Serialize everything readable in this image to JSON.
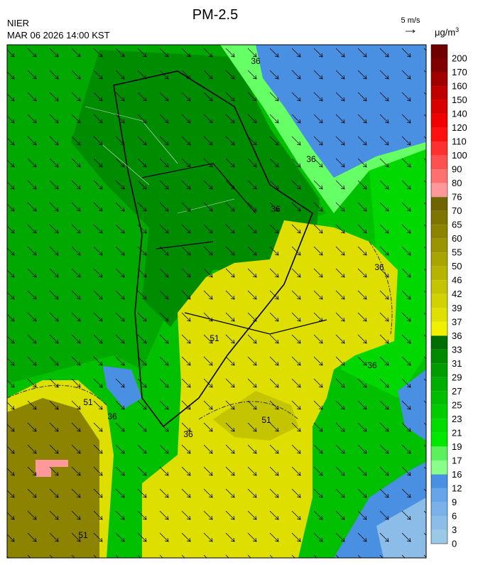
{
  "header": {
    "agency": "NIER",
    "title": "PM-2.5",
    "timestamp": "MAR 06 2026 14:00 KST"
  },
  "wind_legend": {
    "label": "5 m/s"
  },
  "colorbar": {
    "unit": "μg/m",
    "unit_sup": "3",
    "levels": [
      0,
      3,
      6,
      9,
      12,
      16,
      17,
      19,
      21,
      23,
      25,
      27,
      29,
      31,
      33,
      36,
      37,
      39,
      42,
      46,
      50,
      55,
      60,
      65,
      70,
      76,
      80,
      90,
      100,
      110,
      120,
      140,
      150,
      160,
      170,
      200
    ],
    "colors": [
      "#9cc8e8",
      "#8cbde8",
      "#79b1e8",
      "#66a5ea",
      "#4a90e2",
      "#88ff88",
      "#5cf05c",
      "#00e800",
      "#00dc00",
      "#00cc00",
      "#00bd00",
      "#00ad00",
      "#009c00",
      "#008a00",
      "#006e00",
      "#f0f000",
      "#e0e000",
      "#d2d200",
      "#c4c400",
      "#b6b400",
      "#a8a400",
      "#9a9400",
      "#8c8400",
      "#7e7400",
      "#706400",
      "#ff9999",
      "#ff7070",
      "#ff5050",
      "#ff3030",
      "#ff1010",
      "#f00000",
      "#d80000",
      "#c00000",
      "#a00000",
      "#800000",
      "#700000"
    ]
  },
  "contour_labels": [
    "36",
    "36",
    "36",
    "36",
    "51",
    "51",
    "51",
    "36",
    "36",
    "51",
    "36"
  ]
}
